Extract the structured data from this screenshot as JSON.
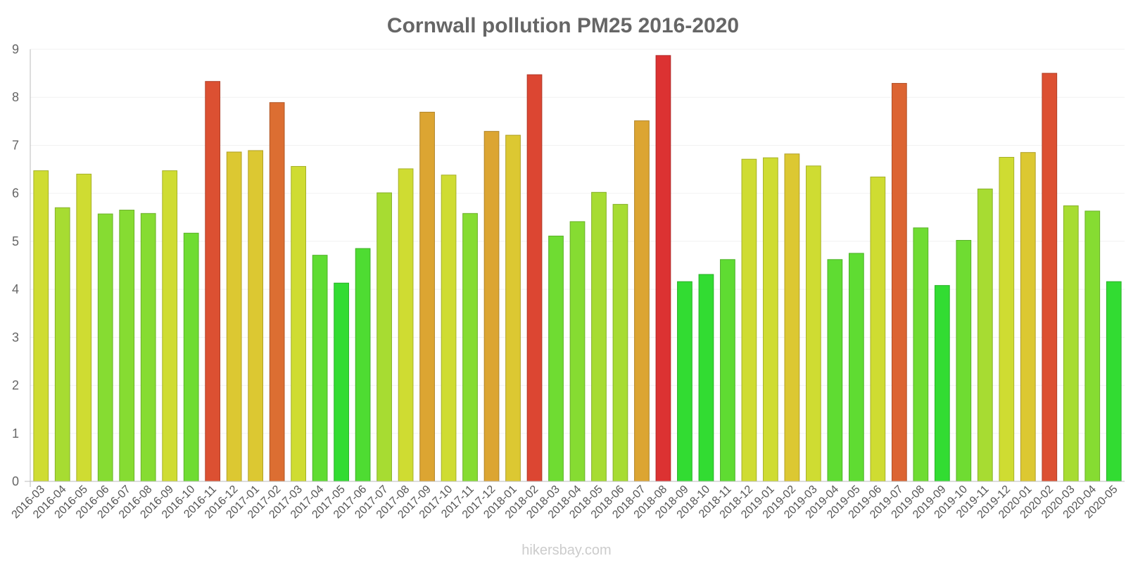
{
  "chart_data": {
    "type": "bar",
    "title": "Cornwall pollution PM25 2016-2020",
    "xlabel": "",
    "ylabel": "",
    "ylim": [
      0,
      9
    ],
    "yticks": [
      "0",
      "1",
      "2",
      "3",
      "4",
      "5",
      "6",
      "7",
      "8",
      "9"
    ],
    "grid": true,
    "categories": [
      "2016-03",
      "2016-04",
      "2016-05",
      "2016-06",
      "2016-07",
      "2016-08",
      "2016-09",
      "2016-10",
      "2016-11",
      "2016-12",
      "2017-01",
      "2017-02",
      "2017-03",
      "2017-04",
      "2017-05",
      "2017-06",
      "2017-07",
      "2017-08",
      "2017-09",
      "2017-10",
      "2017-11",
      "2017-12",
      "2018-01",
      "2018-02",
      "2018-03",
      "2018-04",
      "2018-05",
      "2018-06",
      "2018-07",
      "2018-08",
      "2018-09",
      "2018-10",
      "2018-11",
      "2018-12",
      "2019-01",
      "2019-02",
      "2019-03",
      "2019-04",
      "2019-05",
      "2019-06",
      "2019-07",
      "2019-08",
      "2019-09",
      "2019-10",
      "2019-11",
      "2019-12",
      "2020-01",
      "2020-02",
      "2020-03",
      "2020-04",
      "2020-05"
    ],
    "values": [
      6.47,
      5.7,
      6.4,
      5.57,
      5.65,
      5.58,
      6.47,
      5.17,
      8.33,
      6.86,
      6.89,
      7.89,
      6.56,
      4.71,
      4.13,
      4.85,
      6.01,
      6.51,
      7.69,
      6.38,
      5.58,
      7.29,
      7.21,
      8.47,
      5.11,
      5.41,
      6.02,
      5.77,
      7.51,
      8.87,
      4.16,
      4.31,
      4.62,
      6.71,
      6.74,
      6.82,
      6.57,
      4.62,
      4.75,
      6.34,
      8.29,
      5.28,
      4.08,
      5.02,
      6.09,
      6.75,
      6.85,
      8.5,
      5.74,
      5.63,
      4.16
    ],
    "colors": [
      "#cfdc32",
      "#a7dc32",
      "#cfdc32",
      "#86dc32",
      "#86dc32",
      "#86dc32",
      "#cfdc32",
      "#6fdc32",
      "#dc5032",
      "#dcc832",
      "#dcc832",
      "#dc6e32",
      "#cfdc32",
      "#5fdc32",
      "#32dc32",
      "#4edc32",
      "#a7dc32",
      "#cfdc32",
      "#dca532",
      "#cfdc32",
      "#86dc32",
      "#dca532",
      "#dcc832",
      "#dc4632",
      "#6fdc32",
      "#86dc32",
      "#a7dc32",
      "#a7dc32",
      "#dca532",
      "#dc3232",
      "#32dc32",
      "#32dc32",
      "#5fdc32",
      "#cfdc32",
      "#cfdc32",
      "#dcc832",
      "#cfdc32",
      "#5fdc32",
      "#5fdc32",
      "#cfdc32",
      "#dc6432",
      "#6fdc32",
      "#32dc32",
      "#6fdc32",
      "#a7dc32",
      "#cfdc32",
      "#dcc832",
      "#dc5032",
      "#a7dc32",
      "#86dc32",
      "#32dc32"
    ]
  },
  "watermark": "hikersbay.com"
}
